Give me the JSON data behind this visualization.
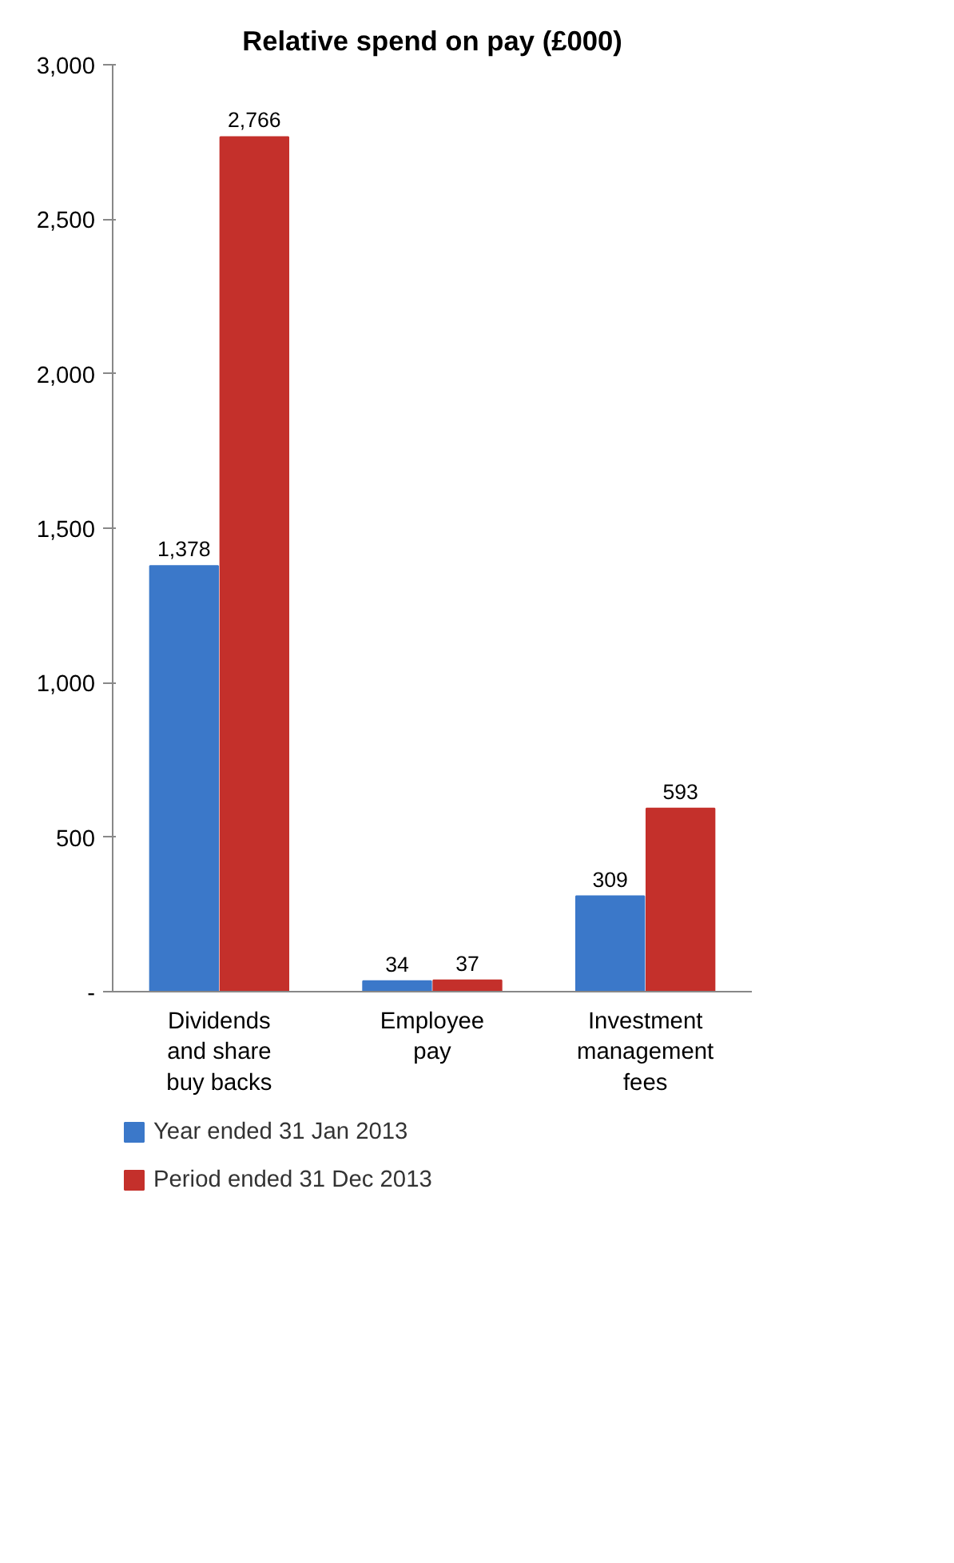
{
  "chart_data": {
    "type": "bar",
    "title": "Relative spend on pay (£000)",
    "categories": [
      "Dividends and share buy backs",
      "Employee pay",
      "Investment management fees"
    ],
    "series": [
      {
        "name": "Year ended 31 Jan 2013",
        "color": "#3b78c9",
        "values": [
          1378,
          34,
          309
        ],
        "value_labels": [
          "1,378",
          "34",
          "309"
        ]
      },
      {
        "name": "Period ended 31 Dec 2013",
        "color": "#c4302b",
        "values": [
          2766,
          37,
          593
        ],
        "value_labels": [
          "2,766",
          "37",
          "593"
        ]
      }
    ],
    "ylim": [
      0,
      3000
    ],
    "yticks": [
      {
        "value": 0,
        "label": "-"
      },
      500,
      {
        "value": 1000,
        "label": "1,000"
      },
      {
        "value": 1500,
        "label": "1,500"
      },
      {
        "value": 2000,
        "label": "2,000"
      },
      {
        "value": 2500,
        "label": "2,500"
      },
      {
        "value": 3000,
        "label": "3,000"
      }
    ],
    "grid": false,
    "legend": "bottom"
  }
}
